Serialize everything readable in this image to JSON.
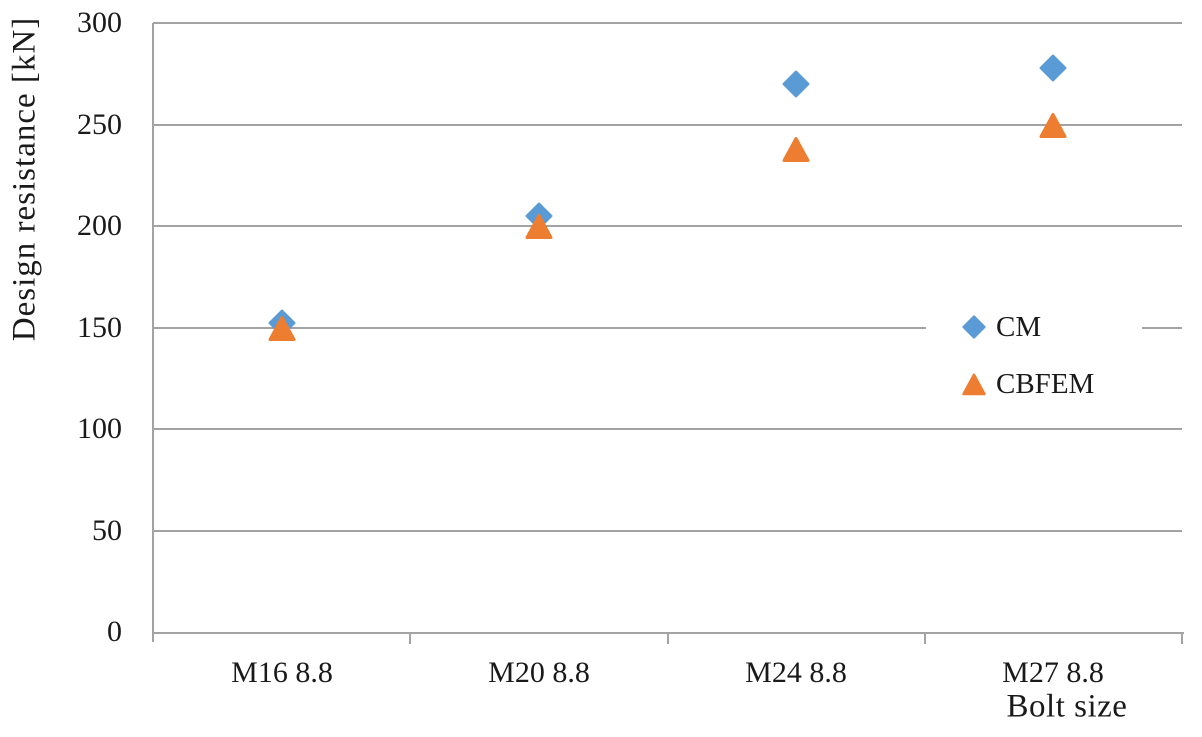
{
  "chart_data": {
    "type": "scatter",
    "categories": [
      "M16 8.8",
      "M20 8.8",
      "M24 8.8",
      "M27 8.8"
    ],
    "series": [
      {
        "name": "CM",
        "marker": "diamond",
        "color": "#5B9BD5",
        "values": [
          152,
          205,
          270,
          278
        ]
      },
      {
        "name": "CBFEM",
        "marker": "triangle",
        "color": "#ED7D31",
        "values": [
          150,
          200,
          238,
          250
        ]
      }
    ],
    "xlabel": "Bolt size",
    "ylabel": "Design resistance [kN]",
    "ylim": [
      0,
      300
    ],
    "ytick_interval": 50,
    "yticks": [
      0,
      50,
      100,
      150,
      200,
      250,
      300
    ],
    "grid": "horizontal gridlines",
    "legend_position": "inside plot, right side at mid-height",
    "colors": {
      "gridline": "#a3a3a3",
      "axis": "#a3a3a3",
      "text": "#1a1a1a",
      "background": "#ffffff"
    }
  }
}
